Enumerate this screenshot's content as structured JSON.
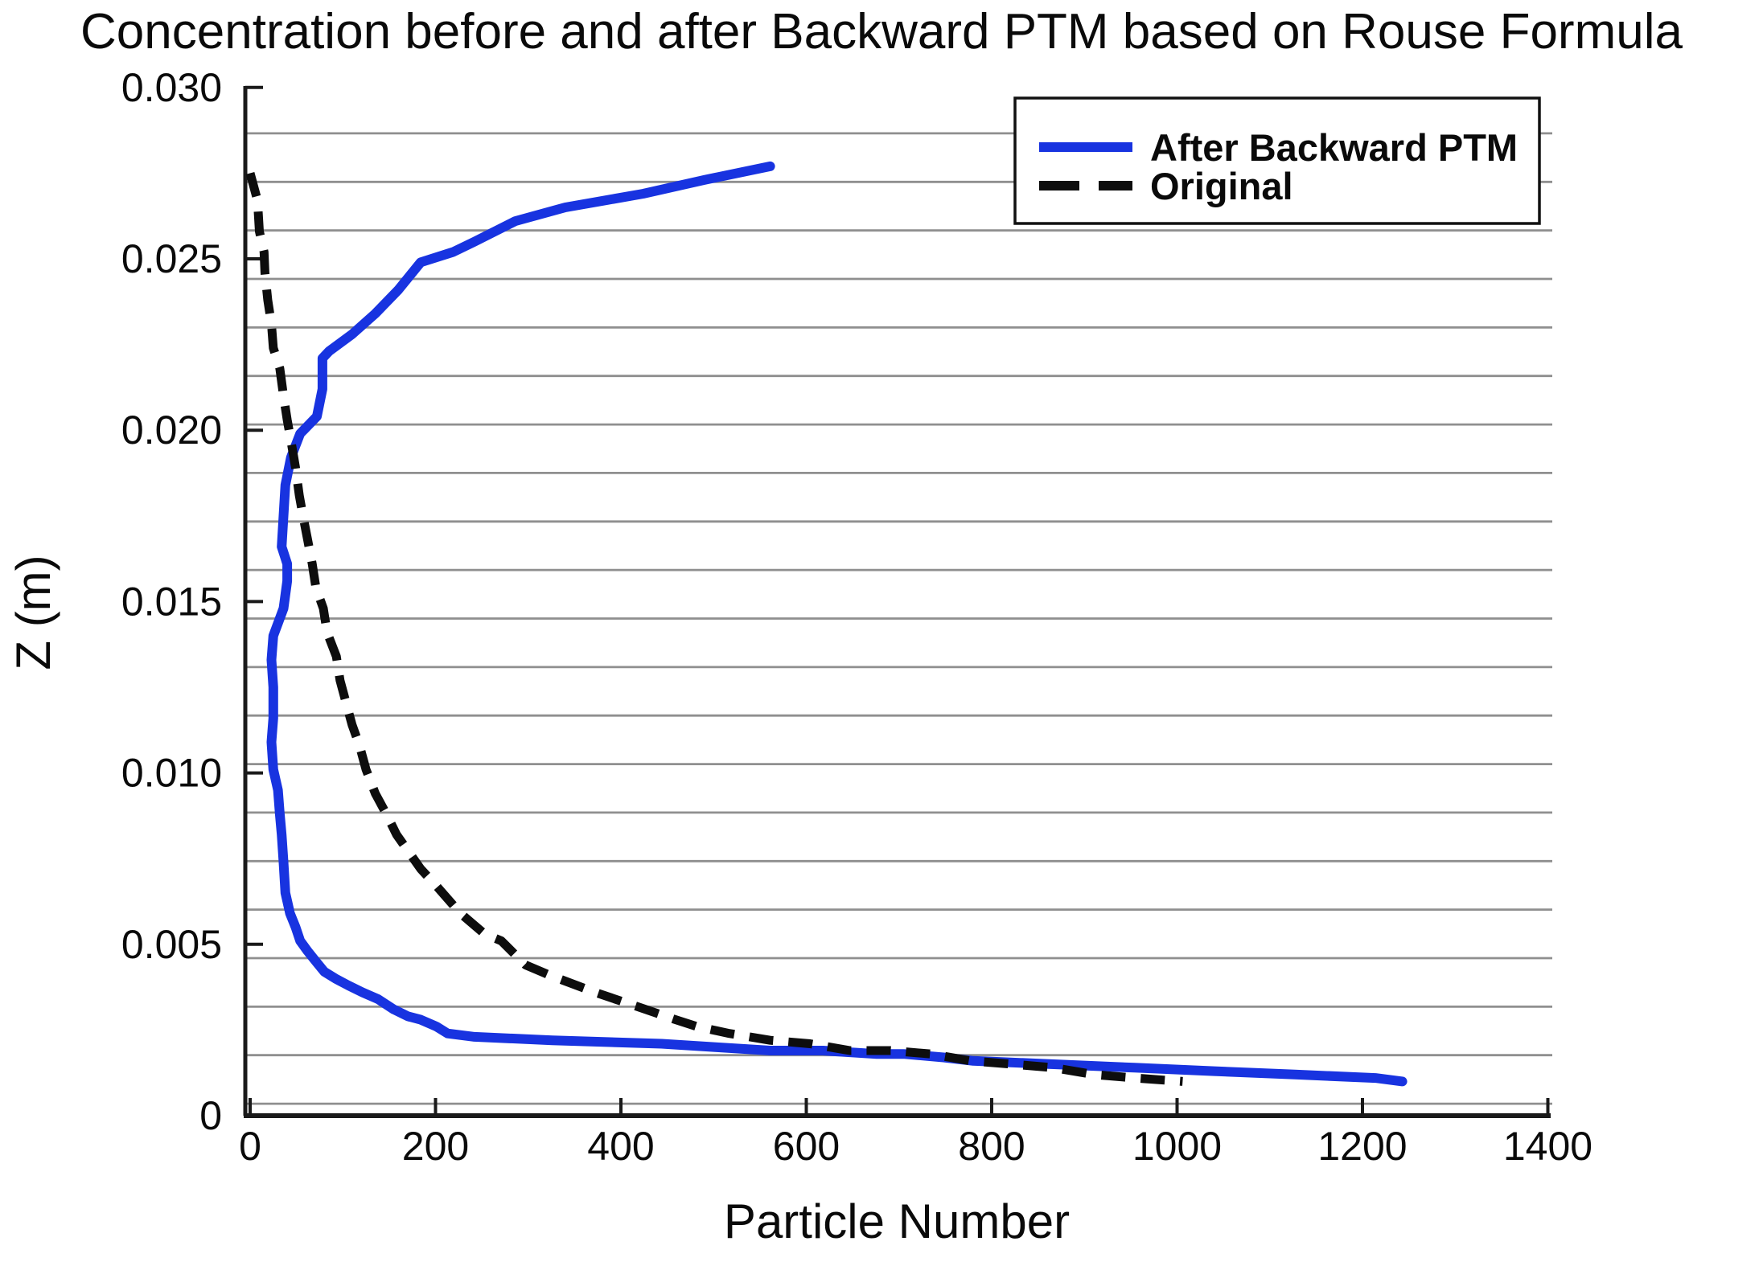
{
  "title": "Concentration before and after Backward PTM based on Rouse Formula",
  "axes": {
    "x_title": "Particle Number",
    "y_title": "Z (m)"
  },
  "legend": {
    "entries": [
      {
        "label": "After Backward PTM",
        "color": "#1833e0",
        "style": "solid"
      },
      {
        "label": "Original",
        "color": "#0d0d0d",
        "style": "dashed"
      }
    ]
  },
  "chart_data": {
    "type": "line",
    "title": "Concentration before and after Backward PTM based on Rouse Formula",
    "xlabel": "Particle Number",
    "ylabel": "Z (m)",
    "xlim": [
      0,
      1400
    ],
    "ylim": [
      0,
      0.03
    ],
    "x_ticks": [
      {
        "value": 0,
        "label": "0"
      },
      {
        "value": 200,
        "label": "200"
      },
      {
        "value": 400,
        "label": "400"
      },
      {
        "value": 600,
        "label": "600"
      },
      {
        "value": 800,
        "label": "800"
      },
      {
        "value": 1000,
        "label": "1000"
      },
      {
        "value": 1200,
        "label": "1200"
      },
      {
        "value": 1400,
        "label": "1400"
      }
    ],
    "y_ticks": [
      {
        "value": 0.03,
        "label": "0.030"
      },
      {
        "value": 0.025,
        "label": "0.025"
      },
      {
        "value": 0.02,
        "label": "0.020"
      },
      {
        "value": 0.015,
        "label": "0.015"
      },
      {
        "value": 0.01,
        "label": "0.010"
      },
      {
        "value": 0.005,
        "label": "0.005"
      },
      {
        "value": 0,
        "label": "0"
      }
    ],
    "grid": {
      "horizontal": true,
      "vertical": false,
      "line_count": 21,
      "z_first": 0.00035,
      "z_last": 0.02866,
      "color": "#8f8f8f"
    },
    "legend_position": "top-right",
    "series": [
      {
        "name": "After Backward PTM",
        "color": "#1833e0",
        "style": "solid",
        "points": [
          [
            561,
            0.0277
          ],
          [
            490,
            0.0273
          ],
          [
            424,
            0.0269
          ],
          [
            340,
            0.0265
          ],
          [
            286,
            0.0261
          ],
          [
            242,
            0.0255
          ],
          [
            219,
            0.0252
          ],
          [
            184,
            0.0249
          ],
          [
            160,
            0.0241
          ],
          [
            135,
            0.0234
          ],
          [
            110,
            0.0228
          ],
          [
            85,
            0.0223
          ],
          [
            78,
            0.0221
          ],
          [
            78,
            0.0212
          ],
          [
            72,
            0.0204
          ],
          [
            54,
            0.0199
          ],
          [
            44,
            0.0192
          ],
          [
            38,
            0.0184
          ],
          [
            36,
            0.0175
          ],
          [
            34,
            0.0166
          ],
          [
            40,
            0.0161
          ],
          [
            40,
            0.0156
          ],
          [
            36,
            0.0148
          ],
          [
            25,
            0.014
          ],
          [
            23,
            0.0133
          ],
          [
            25,
            0.0125
          ],
          [
            25,
            0.0116
          ],
          [
            23,
            0.0109
          ],
          [
            25,
            0.0101
          ],
          [
            30,
            0.0095
          ],
          [
            32,
            0.0088
          ],
          [
            34,
            0.0082
          ],
          [
            36,
            0.0074
          ],
          [
            38,
            0.0065
          ],
          [
            43,
            0.0059
          ],
          [
            49,
            0.0055
          ],
          [
            54,
            0.0051
          ],
          [
            62,
            0.0048
          ],
          [
            71,
            0.0045
          ],
          [
            80,
            0.0042
          ],
          [
            92,
            0.004
          ],
          [
            106,
            0.0038
          ],
          [
            121,
            0.0036
          ],
          [
            138,
            0.0034
          ],
          [
            155,
            0.0031
          ],
          [
            170,
            0.0029
          ],
          [
            184,
            0.0028
          ],
          [
            201,
            0.0026
          ],
          [
            213,
            0.0024
          ],
          [
            242,
            0.0023
          ],
          [
            326,
            0.0022
          ],
          [
            444,
            0.0021
          ],
          [
            502,
            0.002
          ],
          [
            561,
            0.0019
          ],
          [
            618,
            0.0019
          ],
          [
            676,
            0.0018
          ],
          [
            705,
            0.0018
          ],
          [
            748,
            0.0017
          ],
          [
            780,
            0.0016
          ],
          [
            867,
            0.0015
          ],
          [
            954,
            0.0014
          ],
          [
            1040,
            0.0013
          ],
          [
            1127,
            0.0012
          ],
          [
            1214,
            0.0011
          ],
          [
            1243,
            0.001
          ]
        ]
      },
      {
        "name": "Original",
        "color": "#0d0d0d",
        "style": "dashed",
        "points": [
          [
            0,
            0.0275
          ],
          [
            2,
            0.0273
          ],
          [
            8,
            0.0267
          ],
          [
            10,
            0.0258
          ],
          [
            15,
            0.0252
          ],
          [
            16,
            0.0246
          ],
          [
            19,
            0.0238
          ],
          [
            23,
            0.0231
          ],
          [
            25,
            0.0224
          ],
          [
            32,
            0.0218
          ],
          [
            36,
            0.021
          ],
          [
            40,
            0.0203
          ],
          [
            44,
            0.0197
          ],
          [
            49,
            0.0189
          ],
          [
            53,
            0.0181
          ],
          [
            57,
            0.0175
          ],
          [
            62,
            0.0168
          ],
          [
            67,
            0.0161
          ],
          [
            71,
            0.0154
          ],
          [
            79,
            0.0148
          ],
          [
            83,
            0.0141
          ],
          [
            93,
            0.0134
          ],
          [
            97,
            0.0127
          ],
          [
            103,
            0.0121
          ],
          [
            110,
            0.0114
          ],
          [
            118,
            0.0108
          ],
          [
            125,
            0.0101
          ],
          [
            135,
            0.0094
          ],
          [
            147,
            0.0088
          ],
          [
            158,
            0.0082
          ],
          [
            184,
            0.0072
          ],
          [
            201,
            0.0067
          ],
          [
            227,
            0.0059
          ],
          [
            253,
            0.0053
          ],
          [
            271,
            0.0051
          ],
          [
            297,
            0.0044
          ],
          [
            323,
            0.0041
          ],
          [
            372,
            0.0036
          ],
          [
            416,
            0.0032
          ],
          [
            459,
            0.0028
          ],
          [
            482,
            0.0026
          ],
          [
            517,
            0.0024
          ],
          [
            561,
            0.0022
          ],
          [
            604,
            0.0021
          ],
          [
            647,
            0.0019
          ],
          [
            691,
            0.0019
          ],
          [
            734,
            0.0018
          ],
          [
            777,
            0.0016
          ],
          [
            823,
            0.0015
          ],
          [
            867,
            0.0014
          ],
          [
            910,
            0.0012
          ],
          [
            954,
            0.0011
          ],
          [
            1006,
            0.001
          ]
        ]
      }
    ]
  }
}
